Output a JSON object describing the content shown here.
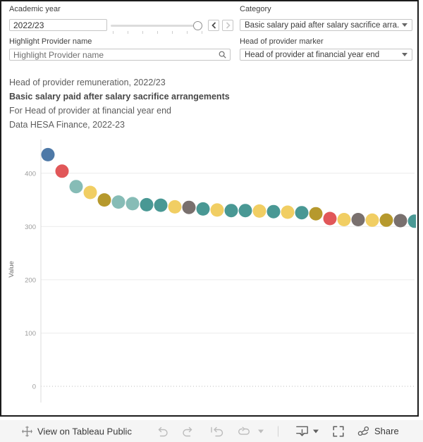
{
  "filters": {
    "academic_year": {
      "label": "Academic year",
      "value": "2022/23"
    },
    "category": {
      "label": "Category",
      "value": "Basic salary paid after salary sacrifice arra..."
    },
    "highlight_provider": {
      "label": "Highlight Provider name",
      "placeholder": "Highlight Provider name"
    },
    "head_marker": {
      "label": "Head of provider marker",
      "value": "Head of provider at financial year end"
    }
  },
  "title_block": {
    "line1": "Head of provider remuneration, 2022/23",
    "line2": "Basic salary paid after salary sacrifice arrangements",
    "line3": "For Head of provider at financial year end",
    "line4": "Data HESA Finance, 2022-23"
  },
  "chart_data": {
    "type": "scatter",
    "title": "Head of provider remuneration, 2022/23",
    "subtitle": "Basic salary paid after salary sacrifice arrangements",
    "xlabel": "",
    "ylabel": "Value",
    "yticks": [
      0,
      100,
      200,
      300,
      400
    ],
    "ylim": [
      0,
      470
    ],
    "grid": "horizontal, zero line dotted",
    "legend": "none",
    "palette": {
      "blue": "#4E79A7",
      "red": "#E15759",
      "light_teal": "#86BCB6",
      "yellow": "#F1CE63",
      "olive": "#B6992D",
      "teal": "#499894",
      "gray": "#79706E"
    },
    "points": [
      {
        "rank": 1,
        "value": 435,
        "color": "#4E79A7"
      },
      {
        "rank": 2,
        "value": 404,
        "color": "#E15759"
      },
      {
        "rank": 3,
        "value": 375,
        "color": "#86BCB6"
      },
      {
        "rank": 4,
        "value": 364,
        "color": "#F1CE63"
      },
      {
        "rank": 5,
        "value": 350,
        "color": "#B6992D"
      },
      {
        "rank": 6,
        "value": 346,
        "color": "#86BCB6"
      },
      {
        "rank": 7,
        "value": 343,
        "color": "#86BCB6"
      },
      {
        "rank": 8,
        "value": 341,
        "color": "#499894"
      },
      {
        "rank": 9,
        "value": 340,
        "color": "#499894"
      },
      {
        "rank": 10,
        "value": 337,
        "color": "#F1CE63"
      },
      {
        "rank": 11,
        "value": 336,
        "color": "#79706E"
      },
      {
        "rank": 12,
        "value": 333,
        "color": "#499894"
      },
      {
        "rank": 13,
        "value": 331,
        "color": "#F1CE63"
      },
      {
        "rank": 14,
        "value": 330,
        "color": "#499894"
      },
      {
        "rank": 15,
        "value": 330,
        "color": "#499894"
      },
      {
        "rank": 16,
        "value": 329,
        "color": "#F1CE63"
      },
      {
        "rank": 17,
        "value": 328,
        "color": "#499894"
      },
      {
        "rank": 18,
        "value": 327,
        "color": "#F1CE63"
      },
      {
        "rank": 19,
        "value": 326,
        "color": "#499894"
      },
      {
        "rank": 20,
        "value": 324,
        "color": "#B6992D"
      },
      {
        "rank": 21,
        "value": 315,
        "color": "#E15759"
      },
      {
        "rank": 22,
        "value": 313,
        "color": "#F1CE63"
      },
      {
        "rank": 23,
        "value": 313,
        "color": "#79706E"
      },
      {
        "rank": 24,
        "value": 312,
        "color": "#F1CE63"
      },
      {
        "rank": 25,
        "value": 312,
        "color": "#B6992D"
      },
      {
        "rank": 26,
        "value": 311,
        "color": "#79706E"
      },
      {
        "rank": 27,
        "value": 310,
        "color": "#499894"
      }
    ]
  },
  "toolbar": {
    "view_label": "View on Tableau Public",
    "share_label": "Share"
  }
}
